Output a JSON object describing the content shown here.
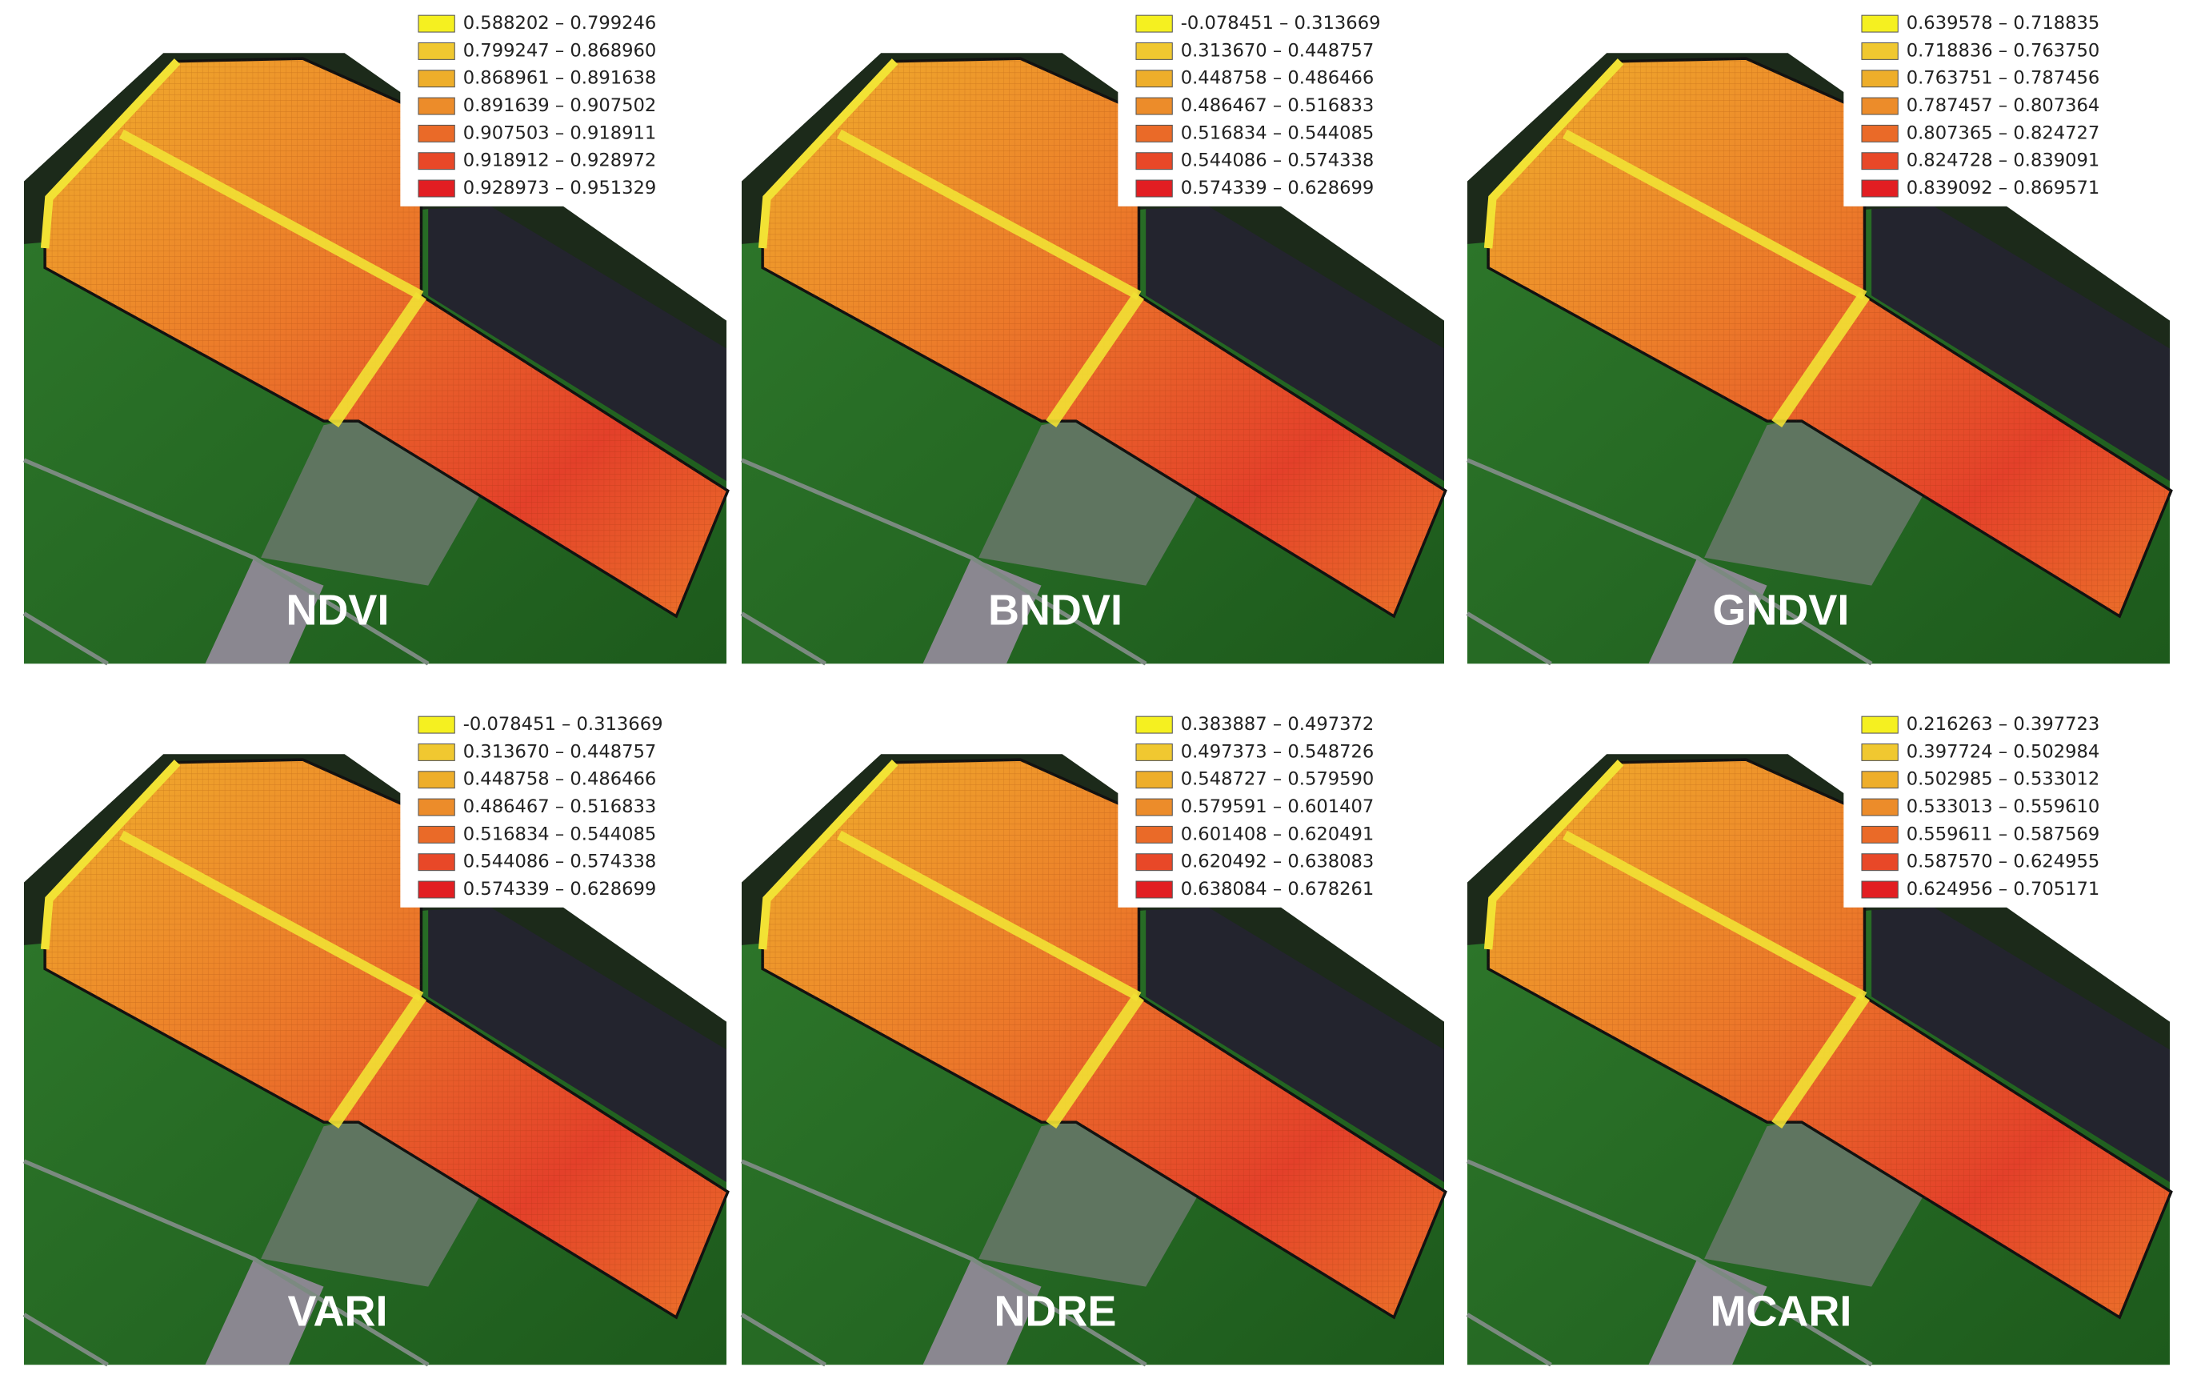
{
  "panels": [
    {
      "label": "NDVI",
      "legend": [
        "0.588202 – 0.799246",
        "0.799247 – 0.868960",
        "0.868961 – 0.891638",
        "0.891639 – 0.907502",
        "0.907503 – 0.918911",
        "0.918912 – 0.928972",
        "0.928973 – 0.951329"
      ]
    },
    {
      "label": "BNDVI",
      "legend": [
        "-0.078451 – 0.313669",
        "0.313670 – 0.448757",
        "0.448758 – 0.486466",
        "0.486467 – 0.516833",
        "0.516834 – 0.544085",
        "0.544086 – 0.574338",
        "0.574339 – 0.628699"
      ]
    },
    {
      "label": "GNDVI",
      "legend": [
        "0.639578 – 0.718835",
        "0.718836 – 0.763750",
        "0.763751 – 0.787456",
        "0.787457 – 0.807364",
        "0.807365 – 0.824727",
        "0.824728 – 0.839091",
        "0.839092 – 0.869571"
      ]
    },
    {
      "label": "VARI",
      "legend": [
        "-0.078451 – 0.313669",
        "0.313670 – 0.448757",
        "0.448758 – 0.486466",
        "0.486467 – 0.516833",
        "0.516834 – 0.544085",
        "0.544086 – 0.574338",
        "0.574339 – 0.628699"
      ]
    },
    {
      "label": "NDRE",
      "legend": [
        "0.383887 – 0.497372",
        "0.497373 – 0.548726",
        "0.548727 – 0.579590",
        "0.579591 – 0.601407",
        "0.601408 – 0.620491",
        "0.620492 – 0.638083",
        "0.638084 – 0.678261"
      ]
    },
    {
      "label": "MCARI",
      "legend": [
        "0.216263 – 0.397723",
        "0.397724 – 0.502984",
        "0.502985 – 0.533012",
        "0.533013 – 0.559610",
        "0.559611 – 0.587569",
        "0.587570 – 0.624955",
        "0.624956 – 0.705171"
      ]
    }
  ],
  "swatch_colors": [
    "#f5f020",
    "#f0c830",
    "#eeae2a",
    "#ec8c2a",
    "#ea6a28",
    "#e84828",
    "#e21e22"
  ]
}
